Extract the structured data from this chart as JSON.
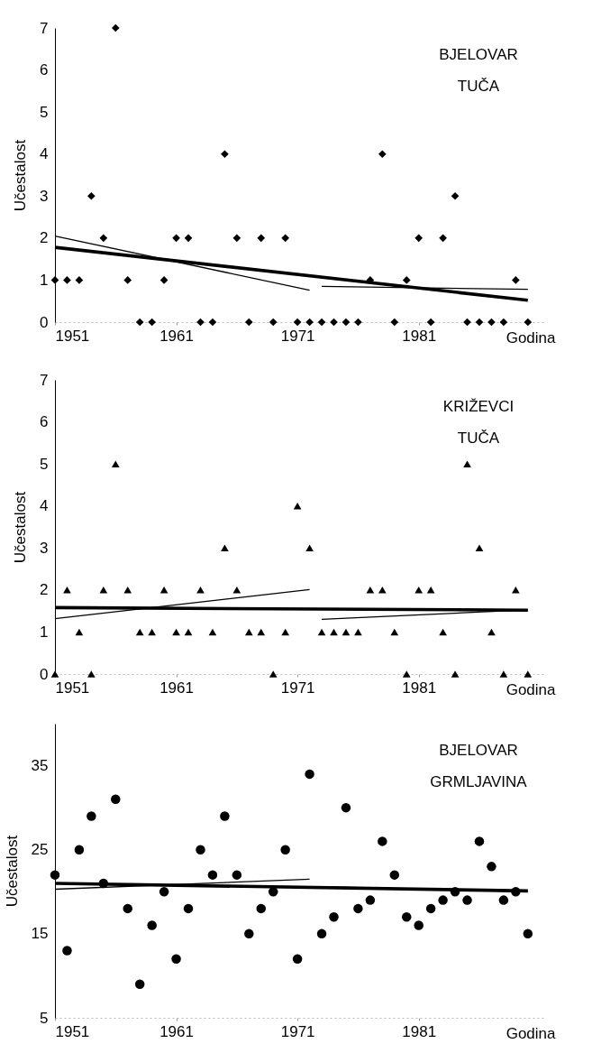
{
  "chart_data": [
    {
      "type": "scatter",
      "title": "BJELOVAR\nTUČA",
      "xlabel": "Godina",
      "ylabel": "Učestalost",
      "marker": "diamond",
      "grid": false,
      "x": [
        1951,
        1952,
        1953,
        1954,
        1955,
        1956,
        1957,
        1958,
        1959,
        1960,
        1961,
        1962,
        1963,
        1964,
        1965,
        1966,
        1967,
        1968,
        1969,
        1970,
        1971,
        1972,
        1973,
        1974,
        1975,
        1976,
        1977,
        1978,
        1979,
        1980,
        1981,
        1982,
        1983,
        1984,
        1985,
        1986,
        1987,
        1988,
        1989,
        1990
      ],
      "xlim": [
        1951,
        1991.5
      ],
      "xticks": [
        1951,
        1961,
        1971,
        1981
      ],
      "ylim": [
        0,
        7
      ],
      "yticks": [
        0,
        1,
        2,
        3,
        4,
        5,
        6,
        7
      ],
      "series": [
        {
          "type": "scatter",
          "color": "#000000",
          "values": [
            1,
            1,
            1,
            3,
            2,
            7,
            1,
            0,
            0,
            1,
            2,
            2,
            0,
            0,
            4,
            2,
            0,
            2,
            0,
            2,
            0,
            0,
            0,
            0,
            0,
            0,
            1,
            4,
            0,
            1,
            2,
            0,
            2,
            3,
            0,
            0,
            0,
            0,
            1,
            0
          ]
        },
        {
          "type": "line",
          "color": "#000000",
          "marker": "none",
          "x": [
            1951,
            1990
          ],
          "values": [
            1.78,
            0.52
          ]
        },
        {
          "type": "line",
          "color": "#000000",
          "marker": "none",
          "x": [
            1951,
            1972
          ],
          "values": [
            2.05,
            0.76
          ]
        },
        {
          "type": "line",
          "color": "#000000",
          "marker": "none",
          "x": [
            1973,
            1990
          ],
          "values": [
            0.85,
            0.78
          ]
        }
      ]
    },
    {
      "type": "scatter",
      "title": "KRIŽEVCI\nTUČA",
      "xlabel": "Godina",
      "ylabel": "Učestalost",
      "marker": "triangle",
      "grid": false,
      "x": [
        1951,
        1952,
        1953,
        1954,
        1955,
        1956,
        1957,
        1958,
        1959,
        1960,
        1961,
        1962,
        1963,
        1964,
        1965,
        1966,
        1967,
        1968,
        1969,
        1970,
        1971,
        1972,
        1973,
        1974,
        1975,
        1976,
        1977,
        1978,
        1979,
        1980,
        1981,
        1982,
        1983,
        1984,
        1985,
        1986,
        1987,
        1988,
        1989,
        1990
      ],
      "xlim": [
        1951,
        1991.5
      ],
      "xticks": [
        1951,
        1961,
        1971,
        1981
      ],
      "ylim": [
        0,
        7
      ],
      "yticks": [
        0,
        1,
        2,
        3,
        4,
        5,
        6,
        7
      ],
      "series": [
        {
          "type": "scatter",
          "color": "#000000",
          "values": [
            0,
            2,
            1,
            0,
            2,
            5,
            2,
            1,
            1,
            2,
            1,
            1,
            2,
            1,
            3,
            2,
            1,
            1,
            0,
            1,
            4,
            3,
            1,
            1,
            1,
            1,
            2,
            2,
            1,
            0,
            2,
            2,
            1,
            0,
            5,
            3,
            1,
            0,
            2,
            0
          ]
        },
        {
          "type": "line",
          "color": "#000000",
          "marker": "none",
          "x": [
            1951,
            1990
          ],
          "values": [
            1.58,
            1.52
          ]
        },
        {
          "type": "line",
          "color": "#000000",
          "marker": "none",
          "x": [
            1951,
            1972
          ],
          "values": [
            1.32,
            2.01
          ]
        },
        {
          "type": "line",
          "color": "#000000",
          "marker": "none",
          "x": [
            1973,
            1990
          ],
          "values": [
            1.3,
            1.53
          ]
        }
      ]
    },
    {
      "type": "scatter",
      "title": "BJELOVAR\nGRMLJAVINA",
      "xlabel": "Godina",
      "ylabel": "Učestalost",
      "marker": "circle",
      "grid": false,
      "x": [
        1951,
        1952,
        1953,
        1954,
        1955,
        1956,
        1957,
        1958,
        1959,
        1960,
        1961,
        1962,
        1963,
        1964,
        1965,
        1966,
        1967,
        1968,
        1969,
        1970,
        1971,
        1972,
        1973,
        1974,
        1975,
        1976,
        1977,
        1978,
        1979,
        1980,
        1981,
        1982,
        1983,
        1984,
        1985,
        1986,
        1987,
        1988,
        1989,
        1990
      ],
      "xlim": [
        1951,
        1991.5
      ],
      "xticks": [
        1951,
        1961,
        1971,
        1981
      ],
      "ylim": [
        5,
        40
      ],
      "yticks": [
        5,
        15,
        25,
        35
      ],
      "series": [
        {
          "type": "scatter",
          "color": "#000000",
          "values": [
            22,
            13,
            25,
            29,
            21,
            31,
            18,
            9,
            16,
            20,
            12,
            18,
            25,
            22,
            29,
            22,
            15,
            18,
            20,
            25,
            12,
            34,
            15,
            17,
            30,
            18,
            19,
            26,
            22,
            17,
            16,
            18,
            19,
            20,
            19,
            26,
            23,
            19,
            20,
            15
          ]
        },
        {
          "type": "line",
          "color": "#000000",
          "marker": "none",
          "x": [
            1951,
            1990
          ],
          "values": [
            21.0,
            20.1
          ]
        },
        {
          "type": "line",
          "color": "#000000",
          "marker": "none",
          "x": [
            1951,
            1972
          ],
          "values": [
            20.3,
            21.5
          ]
        },
        {
          "type": "line",
          "color": "#000000",
          "marker": "none",
          "x": [
            1973,
            1990
          ],
          "values": [
            20.6,
            20.0
          ]
        }
      ]
    }
  ]
}
